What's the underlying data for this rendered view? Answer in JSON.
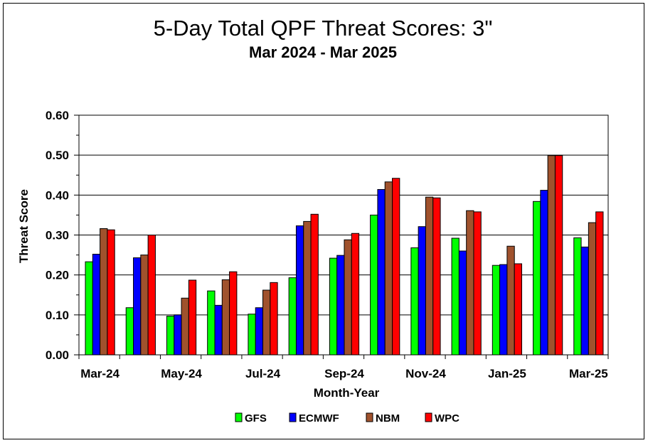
{
  "chart_data": {
    "type": "bar",
    "title": "5-Day Total QPF  Threat Scores:  3\"",
    "subtitle": "Mar 2024 - Mar 2025",
    "xlabel": "Month-Year",
    "ylabel": "Threat Score",
    "ylim": [
      0,
      0.6
    ],
    "yticks": [
      "0.00",
      "0.10",
      "0.20",
      "0.30",
      "0.40",
      "0.50",
      "0.60"
    ],
    "categories": [
      "Mar-24",
      "Apr-24",
      "May-24",
      "Jun-24",
      "Jul-24",
      "Aug-24",
      "Sep-24",
      "Oct-24",
      "Nov-24",
      "Dec-24",
      "Jan-25",
      "Feb-25",
      "Mar-25"
    ],
    "xtick_labels": [
      {
        "index": 0,
        "label": "Mar-24"
      },
      {
        "index": 2,
        "label": "May-24"
      },
      {
        "index": 4,
        "label": "Jul-24"
      },
      {
        "index": 6,
        "label": "Sep-24"
      },
      {
        "index": 8,
        "label": "Nov-24"
      },
      {
        "index": 10,
        "label": "Jan-25"
      },
      {
        "index": 12,
        "label": "Mar-25"
      }
    ],
    "grid": "horizontal",
    "legend_position": "bottom",
    "series": [
      {
        "name": "GFS",
        "color": "#00ff00",
        "values": [
          0.233,
          0.118,
          0.097,
          0.16,
          0.102,
          0.193,
          0.242,
          0.35,
          0.268,
          0.292,
          0.224,
          0.384,
          0.293
        ]
      },
      {
        "name": "ECMWF",
        "color": "#0000ff",
        "values": [
          0.252,
          0.243,
          0.1,
          0.124,
          0.118,
          0.323,
          0.249,
          0.414,
          0.321,
          0.26,
          0.226,
          0.412,
          0.27
        ]
      },
      {
        "name": "NBM",
        "color": "#a0522d",
        "values": [
          0.316,
          0.25,
          0.142,
          0.188,
          0.162,
          0.334,
          0.288,
          0.433,
          0.395,
          0.361,
          0.272,
          0.499,
          0.331
        ]
      },
      {
        "name": "WPC",
        "color": "#ff0000",
        "values": [
          0.313,
          0.3,
          0.187,
          0.208,
          0.181,
          0.352,
          0.304,
          0.442,
          0.393,
          0.358,
          0.228,
          0.499,
          0.358
        ]
      }
    ]
  }
}
